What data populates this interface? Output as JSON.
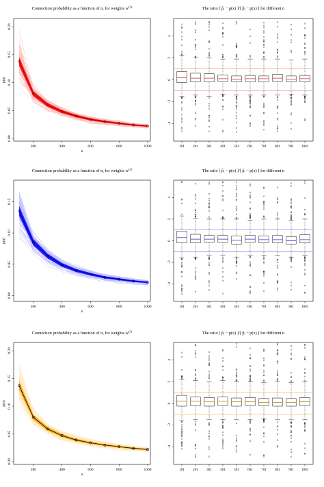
{
  "chart_data": [
    {
      "type": "line",
      "title": "Connection probability as a function of n, for weights  w",
      "title_sup": "(1)",
      "xlabel": "n",
      "ylabel": "p(n)",
      "x_ticks": [
        200,
        400,
        600,
        800,
        1000
      ],
      "y_ticks": [
        0.0,
        0.05,
        0.1,
        0.15,
        0.2
      ],
      "y_tick_labels": [
        "0.00",
        "0.05",
        "0.10",
        "0.15",
        "0.20"
      ],
      "xlim": [
        100,
        1000
      ],
      "ylim": [
        0.0,
        0.21
      ],
      "color": "#ff0000",
      "mean_color": "#8b0000",
      "series": [
        {
          "x": [
            100,
            200,
            300,
            400,
            500,
            600,
            700,
            800,
            900,
            1000
          ],
          "values": [
            0.138,
            0.08,
            0.06,
            0.048,
            0.04,
            0.034,
            0.03,
            0.027,
            0.024,
            0.022
          ]
        }
      ]
    },
    {
      "type": "box",
      "title": "The ratio [ p̂ᵢ − p(x) ]/[ p̂ᵢ − p(x) ] for different n",
      "categories": [
        "101",
        "201",
        "301",
        "401",
        "501",
        "601",
        "701",
        "801",
        "901",
        "1001"
      ],
      "y_ticks": [
        -4,
        -2,
        0,
        2,
        4
      ],
      "y_tick_labels": [
        "−4",
        "−2",
        "0",
        "2",
        "4"
      ],
      "ylim": [
        -5.6,
        5.6
      ],
      "reference_lines": [
        1,
        -1
      ],
      "ref_color": "#e8a09a",
      "median_color": "#cc3333",
      "boxes": [
        {
          "q1": -0.25,
          "median": 0.2,
          "q3": 0.75,
          "whisker_low": -1.5,
          "whisker_high": 2.2
        },
        {
          "q1": -0.2,
          "median": 0.15,
          "q3": 0.6,
          "whisker_low": -1.4,
          "whisker_high": 2.0
        },
        {
          "q1": -0.2,
          "median": 0.15,
          "q3": 0.55,
          "whisker_low": -1.5,
          "whisker_high": 2.0
        },
        {
          "q1": -0.15,
          "median": 0.1,
          "q3": 0.45,
          "whisker_low": -1.3,
          "whisker_high": 1.9
        },
        {
          "q1": -0.2,
          "median": 0.05,
          "q3": 0.35,
          "whisker_low": -1.4,
          "whisker_high": 1.9
        },
        {
          "q1": -0.2,
          "median": 0.1,
          "q3": 0.4,
          "whisker_low": -1.4,
          "whisker_high": 1.9
        },
        {
          "q1": -0.2,
          "median": 0.1,
          "q3": 0.35,
          "whisker_low": -1.4,
          "whisker_high": 1.9
        },
        {
          "q1": -0.15,
          "median": 0.15,
          "q3": 0.5,
          "whisker_low": -1.4,
          "whisker_high": 1.9
        },
        {
          "q1": -0.2,
          "median": 0.05,
          "q3": 0.35,
          "whisker_low": -1.3,
          "whisker_high": 1.8
        },
        {
          "q1": -0.2,
          "median": 0.1,
          "q3": 0.4,
          "whisker_low": -1.4,
          "whisker_high": 1.9
        }
      ]
    },
    {
      "type": "line",
      "title": "Connection probability as a function of n, for weights  w",
      "title_sup": "(2)",
      "xlabel": "n",
      "ylabel": "p(n)",
      "x_ticks": [
        200,
        400,
        600,
        800,
        1000
      ],
      "y_ticks": [
        0.0,
        0.05,
        0.1,
        0.15
      ],
      "y_tick_labels": [
        "0.00",
        "0.05",
        "0.10",
        "0.15"
      ],
      "xlim": [
        100,
        1000
      ],
      "ylim": [
        -0.005,
        0.18
      ],
      "color": "#0000ff",
      "mean_color": "#00008b",
      "series": [
        {
          "x": [
            100,
            200,
            300,
            400,
            500,
            600,
            700,
            800,
            900,
            1000
          ],
          "values": [
            0.135,
            0.085,
            0.063,
            0.049,
            0.04,
            0.034,
            0.029,
            0.026,
            0.023,
            0.021
          ]
        }
      ]
    },
    {
      "type": "box",
      "title": "The ratio [ p̂ᵢ − p(x) ]/[ p̂ᵢ − p(x) ] for different n",
      "categories": [
        "101",
        "201",
        "301",
        "401",
        "501",
        "601",
        "701",
        "801",
        "901",
        "1001"
      ],
      "y_ticks": [
        -4,
        -2,
        0,
        2,
        4
      ],
      "y_tick_labels": [
        "−4",
        "−2",
        "0",
        "2",
        "4"
      ],
      "ylim": [
        -5.6,
        5.6
      ],
      "reference_lines": [
        1,
        -1
      ],
      "ref_color": "#8888ee",
      "median_color": "#3333cc",
      "boxes": [
        {
          "q1": -0.2,
          "median": 0.3,
          "q3": 0.9,
          "whisker_low": -1.6,
          "whisker_high": 2.3
        },
        {
          "q1": -0.2,
          "median": 0.15,
          "q3": 0.6,
          "whisker_low": -1.5,
          "whisker_high": 2.1
        },
        {
          "q1": -0.15,
          "median": 0.15,
          "q3": 0.5,
          "whisker_low": -1.4,
          "whisker_high": 2.0
        },
        {
          "q1": -0.15,
          "median": 0.15,
          "q3": 0.5,
          "whisker_low": -1.4,
          "whisker_high": 2.0
        },
        {
          "q1": -0.3,
          "median": 0.05,
          "q3": 0.45,
          "whisker_low": -1.5,
          "whisker_high": 2.0
        },
        {
          "q1": -0.15,
          "median": 0.15,
          "q3": 0.5,
          "whisker_low": -1.4,
          "whisker_high": 1.9
        },
        {
          "q1": -0.2,
          "median": 0.1,
          "q3": 0.45,
          "whisker_low": -1.4,
          "whisker_high": 2.0
        },
        {
          "q1": -0.2,
          "median": 0.1,
          "q3": 0.5,
          "whisker_low": -1.4,
          "whisker_high": 2.0
        },
        {
          "q1": -0.3,
          "median": 0.0,
          "q3": 0.4,
          "whisker_low": -1.5,
          "whisker_high": 1.9
        },
        {
          "q1": -0.2,
          "median": 0.1,
          "q3": 0.55,
          "whisker_low": -1.4,
          "whisker_high": 2.0
        }
      ]
    },
    {
      "type": "line",
      "title": "Connection probability as a function of n, for weights  w",
      "title_sup": "(3)",
      "xlabel": "n",
      "ylabel": "p(n)",
      "x_ticks": [
        200,
        400,
        600,
        800,
        1000
      ],
      "y_ticks": [
        0.0,
        0.05,
        0.1,
        0.15,
        0.2
      ],
      "y_tick_labels": [
        "0.00",
        "0.05",
        "0.10",
        "0.15",
        "0.20"
      ],
      "xlim": [
        100,
        1000
      ],
      "ylim": [
        0.0,
        0.21
      ],
      "color": "#ffa500",
      "mean_color": "#000000",
      "series": [
        {
          "x": [
            100,
            200,
            300,
            400,
            500,
            600,
            700,
            800,
            900,
            1000
          ],
          "values": [
            0.137,
            0.08,
            0.059,
            0.047,
            0.039,
            0.034,
            0.03,
            0.027,
            0.024,
            0.022
          ]
        }
      ]
    },
    {
      "type": "box",
      "title": "The ratio [ p̂ᵢ − p(x) ]/[ p̂ᵢ − p(x) ] for different n",
      "categories": [
        "101",
        "201",
        "301",
        "401",
        "501",
        "601",
        "701",
        "801",
        "901",
        "1001"
      ],
      "y_ticks": [
        -4,
        -2,
        0,
        2,
        4
      ],
      "y_tick_labels": [
        "−4",
        "−2",
        "0",
        "2",
        "4"
      ],
      "ylim": [
        -5.6,
        5.6
      ],
      "reference_lines": [
        1,
        -1
      ],
      "ref_color": "#f0c070",
      "median_color": "#999900",
      "boxes": [
        {
          "q1": -0.25,
          "median": 0.2,
          "q3": 0.75,
          "whisker_low": -1.6,
          "whisker_high": 2.2
        },
        {
          "q1": -0.2,
          "median": 0.2,
          "q3": 0.6,
          "whisker_low": -1.5,
          "whisker_high": 2.1
        },
        {
          "q1": -0.25,
          "median": 0.15,
          "q3": 0.55,
          "whisker_low": -1.5,
          "whisker_high": 2.0
        },
        {
          "q1": -0.2,
          "median": 0.2,
          "q3": 0.6,
          "whisker_low": -1.5,
          "whisker_high": 2.1
        },
        {
          "q1": -0.25,
          "median": 0.15,
          "q3": 0.5,
          "whisker_low": -1.5,
          "whisker_high": 2.0
        },
        {
          "q1": -0.2,
          "median": 0.15,
          "q3": 0.55,
          "whisker_low": -1.5,
          "whisker_high": 2.0
        },
        {
          "q1": -0.2,
          "median": 0.1,
          "q3": 0.45,
          "whisker_low": -1.4,
          "whisker_high": 1.9
        },
        {
          "q1": -0.25,
          "median": 0.1,
          "q3": 0.5,
          "whisker_low": -1.5,
          "whisker_high": 2.0
        },
        {
          "q1": -0.25,
          "median": 0.1,
          "q3": 0.45,
          "whisker_low": -1.5,
          "whisker_high": 1.9
        },
        {
          "q1": -0.2,
          "median": 0.15,
          "q3": 0.55,
          "whisker_low": -1.5,
          "whisker_high": 2.0
        }
      ]
    }
  ]
}
